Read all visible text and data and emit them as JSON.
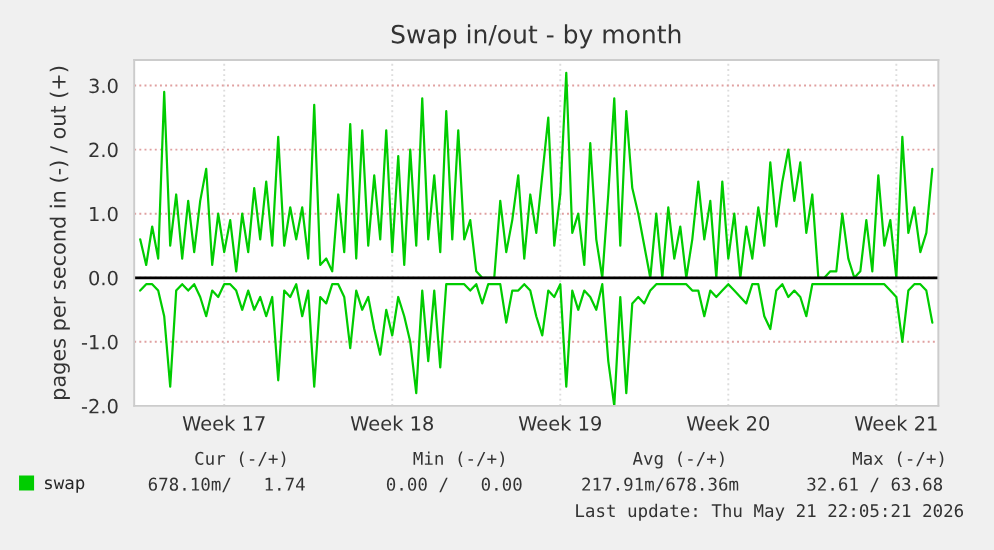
{
  "chart_data": {
    "type": "line",
    "title": "Swap in/out - by month",
    "ylabel": "pages per second in (-) / out (+)",
    "categories": [
      null,
      null,
      null,
      null,
      null,
      null,
      null,
      null,
      null,
      null,
      null,
      null,
      null,
      null,
      "Week 17",
      null,
      null,
      null,
      null,
      null,
      null,
      null,
      null,
      null,
      null,
      null,
      null,
      null,
      null,
      null,
      null,
      null,
      null,
      null,
      null,
      null,
      null,
      null,
      null,
      null,
      null,
      null,
      "Week 18",
      null,
      null,
      null,
      null,
      null,
      null,
      null,
      null,
      null,
      null,
      null,
      null,
      null,
      null,
      null,
      null,
      null,
      null,
      null,
      null,
      null,
      null,
      null,
      null,
      null,
      null,
      null,
      "Week 19",
      null,
      null,
      null,
      null,
      null,
      null,
      null,
      null,
      null,
      null,
      null,
      null,
      null,
      null,
      null,
      null,
      null,
      null,
      null,
      null,
      null,
      null,
      null,
      null,
      null,
      null,
      null,
      "Week 20",
      null,
      null,
      null,
      null,
      null,
      null,
      null,
      null,
      null,
      null,
      null,
      null,
      null,
      null,
      null,
      null,
      null,
      null,
      null,
      null,
      null,
      null,
      null,
      null,
      null,
      null,
      null,
      "Week 21",
      null,
      null,
      null,
      null,
      null,
      null
    ],
    "ylim": [
      -2.0,
      3.4
    ],
    "yticks": [
      {
        "value": -2,
        "label": "-2.0"
      },
      {
        "value": -1,
        "label": "-1.0"
      },
      {
        "value": 0,
        "label": "0.0"
      },
      {
        "value": 1,
        "label": "1.0"
      },
      {
        "value": 2,
        "label": "2.0"
      },
      {
        "value": 3,
        "label": "3.0"
      }
    ],
    "grid": true,
    "legend": "bottom left",
    "marker": "none",
    "line_style": "solid",
    "ref_lines": [
      {
        "axis": "y",
        "value": 0,
        "color": "#000000"
      }
    ],
    "annotations": [
      "Cur (-/+)",
      "Min (-/+)",
      "Avg (-/+)",
      "Max (-/+)",
      "678.10m/   1.74",
      "0.00 /   0.00",
      "217.91m/678.36m",
      "32.61 / 63.68",
      "Last update: Thu May 21 22:05:21 2026"
    ],
    "series": [
      {
        "name": "swap",
        "color": "#00cc00",
        "values": [
          0.6,
          0.2,
          0.8,
          0.3,
          2.9,
          0.5,
          1.3,
          0.3,
          1.2,
          0.4,
          1.2,
          1.7,
          0.2,
          1.0,
          0.4,
          0.9,
          0.1,
          1.0,
          0.4,
          1.4,
          0.6,
          1.5,
          0.5,
          2.2,
          0.5,
          1.1,
          0.6,
          1.1,
          0.3,
          2.7,
          0.2,
          0.3,
          0.1,
          1.3,
          0.4,
          2.4,
          0.3,
          2.3,
          0.5,
          1.6,
          0.6,
          2.3,
          0.4,
          1.9,
          0.2,
          2.0,
          0.5,
          2.8,
          0.6,
          1.6,
          0.4,
          2.6,
          0.6,
          2.3,
          0.6,
          0.9,
          0.1,
          0.0,
          0.0,
          0.0,
          1.2,
          0.4,
          0.9,
          1.6,
          0.3,
          1.3,
          0.7,
          1.6,
          2.5,
          0.5,
          1.3,
          3.2,
          0.7,
          1.0,
          0.2,
          2.1,
          0.6,
          0.0,
          1.3,
          2.8,
          0.5,
          2.6,
          1.4,
          1.0,
          0.5,
          0.0,
          1.0,
          0.0,
          1.1,
          0.3,
          0.8,
          0.0,
          0.6,
          1.5,
          0.6,
          1.2,
          0.0,
          1.5,
          0.3,
          1.0,
          0.0,
          0.8,
          0.3,
          1.1,
          0.5,
          1.8,
          0.8,
          1.5,
          2.0,
          1.2,
          1.8,
          0.7,
          1.3,
          0.0,
          0.0,
          0.1,
          0.1,
          1.0,
          0.3,
          0.0,
          0.1,
          0.9,
          0.1,
          1.6,
          0.5,
          0.9,
          0.0,
          2.2,
          0.7,
          1.1,
          0.4,
          0.7,
          1.7
        ]
      },
      {
        "color": "#00cc00",
        "values": [
          -0.2,
          -0.1,
          -0.1,
          -0.2,
          -0.6,
          -1.7,
          -0.2,
          -0.1,
          -0.2,
          -0.1,
          -0.3,
          -0.6,
          -0.2,
          -0.3,
          -0.1,
          -0.1,
          -0.2,
          -0.5,
          -0.2,
          -0.5,
          -0.3,
          -0.6,
          -0.3,
          -1.6,
          -0.2,
          -0.3,
          -0.1,
          -0.6,
          -0.2,
          -1.7,
          -0.3,
          -0.4,
          -0.1,
          -0.1,
          -0.3,
          -1.1,
          -0.2,
          -0.5,
          -0.3,
          -0.8,
          -1.2,
          -0.5,
          -0.9,
          -0.3,
          -0.6,
          -1.0,
          -1.8,
          -0.2,
          -1.3,
          -0.2,
          -1.4,
          -0.1,
          -0.1,
          -0.1,
          -0.1,
          -0.2,
          -0.1,
          -0.4,
          -0.1,
          -0.1,
          -0.1,
          -0.7,
          -0.2,
          -0.2,
          -0.1,
          -0.2,
          -0.6,
          -0.9,
          -0.2,
          -0.3,
          -0.1,
          -1.7,
          -0.2,
          -0.5,
          -0.2,
          -0.3,
          -0.5,
          -0.1,
          -1.3,
          -2.0,
          -0.3,
          -1.8,
          -0.4,
          -0.3,
          -0.4,
          -0.2,
          -0.1,
          -0.1,
          -0.1,
          -0.1,
          -0.1,
          -0.1,
          -0.2,
          -0.2,
          -0.6,
          -0.2,
          -0.3,
          -0.2,
          -0.1,
          -0.2,
          -0.3,
          -0.4,
          -0.1,
          -0.1,
          -0.6,
          -0.8,
          -0.2,
          -0.1,
          -0.3,
          -0.2,
          -0.3,
          -0.6,
          -0.1,
          -0.1,
          -0.1,
          -0.1,
          -0.1,
          -0.1,
          -0.1,
          -0.1,
          -0.1,
          -0.1,
          -0.1,
          -0.1,
          -0.1,
          -0.2,
          -0.3,
          -1.0,
          -0.2,
          -0.1,
          -0.1,
          -0.2,
          -0.7
        ]
      }
    ]
  }
}
